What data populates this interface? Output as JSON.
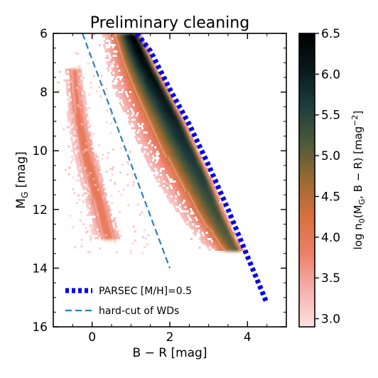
{
  "chart_data": {
    "type": "heatmap",
    "title": "Preliminary cleaning",
    "xlabel": {
      "main": "B − R",
      "unit": " [mag]"
    },
    "ylabel": {
      "main": "M",
      "sub": "G",
      "unit": " [mag]"
    },
    "xlim": [
      -1.0,
      5.0
    ],
    "ylim": [
      16.0,
      6.0
    ],
    "y_inverted": true,
    "x_ticks": [
      {
        "v": 0,
        "label": "0"
      },
      {
        "v": 2,
        "label": "2"
      },
      {
        "v": 4,
        "label": "4"
      }
    ],
    "y_ticks": [
      {
        "v": 6,
        "label": "6"
      },
      {
        "v": 8,
        "label": "8"
      },
      {
        "v": 10,
        "label": "10"
      },
      {
        "v": 12,
        "label": "12"
      },
      {
        "v": 14,
        "label": "14"
      },
      {
        "v": 16,
        "label": "16"
      }
    ],
    "colorbar": {
      "label_parts": {
        "pre": "log n",
        "sub0": "0",
        "mid": "(M",
        "subG": "G",
        "post": ", B − R) [mag",
        "sup": "−2",
        "end": "]"
      },
      "range": [
        2.9,
        6.5
      ],
      "ticks": [
        {
          "v": 3.0,
          "label": "3.0"
        },
        {
          "v": 3.5,
          "label": "3.5"
        },
        {
          "v": 4.0,
          "label": "4.0"
        },
        {
          "v": 4.5,
          "label": "4.5"
        },
        {
          "v": 5.0,
          "label": "5.0"
        },
        {
          "v": 5.5,
          "label": "5.5"
        },
        {
          "v": 6.0,
          "label": "6.0"
        },
        {
          "v": 6.5,
          "label": "6.5"
        }
      ],
      "colors": [
        "#fde0e0",
        "#f5b1ae",
        "#ee7f6a",
        "#d8703c",
        "#9a6a32",
        "#4d5a3a",
        "#1e3d3d",
        "#081a1c",
        "#000000"
      ]
    },
    "series": [
      {
        "name": "PARSEC [M/H]=0.5",
        "style": "dotted",
        "color": "#0000ee",
        "x": [
          1.15,
          1.5,
          2.0,
          2.5,
          3.0,
          3.5,
          4.0,
          4.5
        ],
        "y": [
          6.0,
          6.6,
          7.9,
          9.1,
          10.5,
          12.0,
          13.6,
          15.2
        ]
      },
      {
        "name": "hard-cut of WDs",
        "style": "dashed",
        "color": "#2e7fb8",
        "x": [
          -0.25,
          2.0
        ],
        "y": [
          6.0,
          14.0
        ]
      }
    ],
    "density_regions": [
      {
        "id": "main-sequence",
        "ridge": [
          [
            1.05,
            6.0
          ],
          [
            1.4,
            7.0
          ],
          [
            1.8,
            8.0
          ],
          [
            2.2,
            9.0
          ],
          [
            2.55,
            10.0
          ],
          [
            2.9,
            11.0
          ],
          [
            3.2,
            12.0
          ],
          [
            3.55,
            13.0
          ],
          [
            3.7,
            13.35
          ]
        ],
        "log_density_peak": 6.5
      },
      {
        "id": "white-dwarf-sequence",
        "ridge": [
          [
            -0.5,
            7.2
          ],
          [
            -0.45,
            8.0
          ],
          [
            -0.35,
            9.0
          ],
          [
            -0.2,
            10.0
          ],
          [
            0.0,
            11.0
          ],
          [
            0.2,
            12.0
          ],
          [
            0.4,
            13.0
          ]
        ],
        "log_density_peak": 4.6
      }
    ],
    "legend": {
      "position": "lower-left"
    },
    "grid": false
  }
}
